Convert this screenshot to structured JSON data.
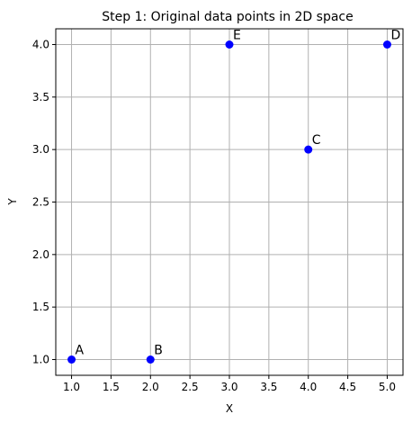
{
  "chart_data": {
    "type": "scatter",
    "title": "Step 1: Original data points in 2D space",
    "xlabel": "X",
    "ylabel": "Y",
    "xlim": [
      0.8,
      5.2
    ],
    "ylim": [
      0.85,
      4.15
    ],
    "xticks": [
      "1.0",
      "1.5",
      "2.0",
      "2.5",
      "3.0",
      "3.5",
      "4.0",
      "4.5",
      "5.0"
    ],
    "yticks": [
      "1.0",
      "1.5",
      "2.0",
      "2.5",
      "3.0",
      "3.5",
      "4.0"
    ],
    "grid": true,
    "point_color": "#0000ff",
    "points": [
      {
        "label": "A",
        "x": 1,
        "y": 1
      },
      {
        "label": "B",
        "x": 2,
        "y": 1
      },
      {
        "label": "C",
        "x": 4,
        "y": 3
      },
      {
        "label": "D",
        "x": 5,
        "y": 4
      },
      {
        "label": "E",
        "x": 3,
        "y": 4
      }
    ]
  }
}
